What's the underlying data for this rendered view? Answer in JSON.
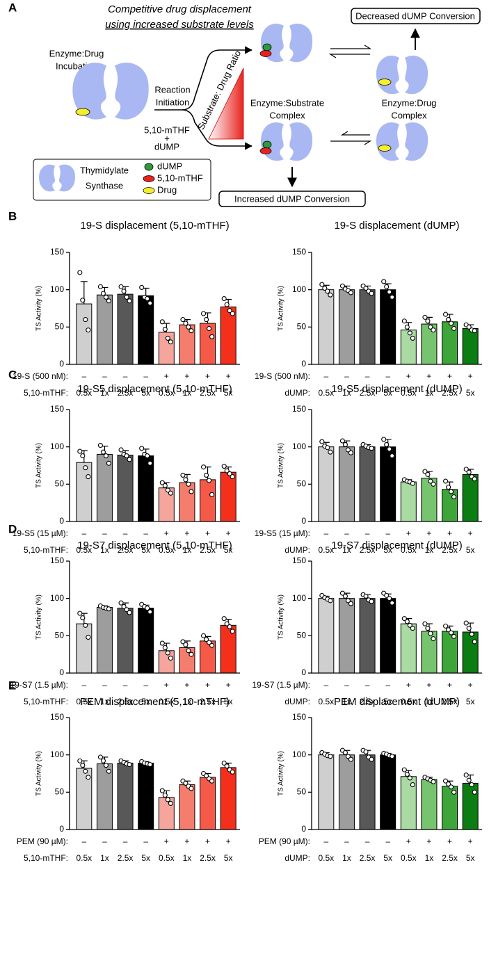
{
  "figure": {
    "panel_labels": [
      "A",
      "B",
      "C",
      "D",
      "E"
    ]
  },
  "diagram": {
    "title_line1": "Competitive drug displacement",
    "title_line2": "using increased substrate levels",
    "decreased": "Decreased dUMP Conversion",
    "increased": "Increased dUMP Conversion",
    "incubation_line1": "Enzyme:Drug",
    "incubation_line2": "Incubation",
    "initiation_line1": "Reaction",
    "initiation_line2": "Initiation",
    "ratio": "Substrate: Drug Ratio",
    "substrate_1": "5,10-mTHF",
    "plus": "+",
    "substrate_2": "dUMP",
    "substrate_complex_line1": "Enzyme:Substrate",
    "substrate_complex_line2": "Complex",
    "drug_complex_line1": "Enzyme:Drug",
    "drug_complex_line2": "Complex",
    "legend": {
      "enzyme_line1": "Thymidylate",
      "enzyme_line2": "Synthase",
      "dump": "dUMP",
      "mthf": "5,10-mTHF",
      "drug": "Drug"
    }
  },
  "chart_data": [
    {
      "type": "bar",
      "title": "19-S displacement (5,10-mTHF)",
      "ylabel": "TS Activity (%)",
      "ylim": [
        0,
        150
      ],
      "yticks": [
        0,
        50,
        100,
        150
      ],
      "treatment_label": "19-S (500 nM):",
      "treatment": [
        "–",
        "–",
        "–",
        "–",
        "+",
        "+",
        "+",
        "+"
      ],
      "substrate_label": "5,10-mTHF:",
      "categories": [
        "0.5x",
        "1x",
        "2.5x",
        "5x",
        "0.5x",
        "1x",
        "2.5x",
        "5x"
      ],
      "values": [
        81,
        93,
        94,
        92,
        43,
        53,
        55,
        77
      ],
      "errors": [
        30,
        10,
        10,
        10,
        12,
        7,
        14,
        10
      ],
      "points": [
        [
          123,
          86,
          60,
          46
        ],
        [
          104,
          95,
          90,
          85
        ],
        [
          104,
          98,
          90,
          85
        ],
        [
          103,
          90,
          88,
          82
        ],
        [
          57,
          47,
          35,
          30
        ],
        [
          60,
          55,
          50,
          45
        ],
        [
          68,
          60,
          48,
          37
        ],
        [
          88,
          80,
          72,
          68
        ]
      ],
      "colors": [
        "#cfcfcf",
        "#9d9d9d",
        "#585858",
        "#000000",
        "#f6a59c",
        "#f57d6d",
        "#f55a48",
        "#f4301c"
      ]
    },
    {
      "type": "bar",
      "title": "19-S displacement (dUMP)",
      "ylabel": "TS Activity (%)",
      "ylim": [
        0,
        150
      ],
      "yticks": [
        0,
        50,
        100,
        150
      ],
      "treatment_label": "19-S (500 nM):",
      "treatment": [
        "–",
        "–",
        "–",
        "–",
        "+",
        "+",
        "+",
        "+"
      ],
      "substrate_label": "dUMP:",
      "categories": [
        "0.5x",
        "1x",
        "2.5x",
        "5x",
        "0.5x",
        "1x",
        "2.5x",
        "5x"
      ],
      "values": [
        100,
        100,
        100,
        100,
        46,
        54,
        57,
        48
      ],
      "errors": [
        6,
        5,
        5,
        8,
        10,
        9,
        10,
        5
      ],
      "points": [
        [
          107,
          102,
          98,
          93
        ],
        [
          105,
          101,
          99,
          96
        ],
        [
          105,
          102,
          98,
          95
        ],
        [
          111,
          104,
          97,
          90
        ],
        [
          58,
          50,
          42,
          35
        ],
        [
          63,
          58,
          50,
          46
        ],
        [
          67,
          60,
          55,
          48
        ],
        [
          53,
          50,
          46,
          45
        ]
      ],
      "colors": [
        "#cfcfcf",
        "#9d9d9d",
        "#585858",
        "#000000",
        "#a9dba2",
        "#76c46e",
        "#3ea53a",
        "#0b7d12"
      ]
    },
    {
      "type": "bar",
      "title": "19-S5 displacement (5,10-mTHF)",
      "ylabel": "TS Activity (%)",
      "ylim": [
        0,
        150
      ],
      "yticks": [
        0,
        50,
        100,
        150
      ],
      "treatment_label": "19-S5 (15 µM):",
      "treatment": [
        "–",
        "–",
        "–",
        "–",
        "+",
        "+",
        "+",
        "+"
      ],
      "substrate_label": "5,10-mTHF:",
      "categories": [
        "0.5x",
        "1x",
        "2.5x",
        "5x",
        "0.5x",
        "1x",
        "2.5x",
        "5x"
      ],
      "values": [
        79,
        90,
        89,
        88,
        45,
        52,
        56,
        66
      ],
      "errors": [
        16,
        11,
        6,
        9,
        7,
        11,
        17,
        7
      ],
      "points": [
        [
          94,
          88,
          72,
          60
        ],
        [
          102,
          93,
          88,
          78
        ],
        [
          96,
          90,
          88,
          83
        ],
        [
          98,
          90,
          88,
          78
        ],
        [
          52,
          48,
          42,
          38
        ],
        [
          62,
          56,
          50,
          40
        ],
        [
          73,
          62,
          55,
          36
        ],
        [
          74,
          68,
          64,
          60
        ]
      ],
      "colors": [
        "#cfcfcf",
        "#9d9d9d",
        "#585858",
        "#000000",
        "#f6a59c",
        "#f57d6d",
        "#f55a48",
        "#f4301c"
      ]
    },
    {
      "type": "bar",
      "title": "19-S5 displacement (dUMP)",
      "ylabel": "TS Activity (%)",
      "ylim": [
        0,
        150
      ],
      "yticks": [
        0,
        50,
        100,
        150
      ],
      "treatment_label": "19-S5 (15 µM):",
      "treatment": [
        "–",
        "–",
        "–",
        "–",
        "+",
        "+",
        "+",
        "+"
      ],
      "substrate_label": "dUMP:",
      "categories": [
        "0.5x",
        "1x",
        "2.5x",
        "5x",
        "0.5x",
        "1x",
        "2.5x",
        "5x"
      ],
      "values": [
        100,
        100,
        100,
        100,
        53,
        58,
        43,
        63
      ],
      "errors": [
        6,
        8,
        3,
        10,
        3,
        9,
        10,
        7
      ],
      "points": [
        [
          107,
          101,
          99,
          93
        ],
        [
          108,
          103,
          96,
          92
        ],
        [
          103,
          101,
          99,
          98
        ],
        [
          110,
          103,
          97,
          88
        ],
        [
          56,
          54,
          53,
          51
        ],
        [
          67,
          63,
          54,
          50
        ],
        [
          54,
          46,
          40,
          33
        ],
        [
          70,
          66,
          60,
          57
        ]
      ],
      "colors": [
        "#cfcfcf",
        "#9d9d9d",
        "#585858",
        "#000000",
        "#a9dba2",
        "#76c46e",
        "#3ea53a",
        "#0b7d12"
      ]
    },
    {
      "type": "bar",
      "title": "19-S7 displacement (5,10-mTHF)",
      "ylabel": "TS Activity (%)",
      "ylim": [
        0,
        150
      ],
      "yticks": [
        0,
        50,
        100,
        150
      ],
      "treatment_label": "19-S7 (1.5 µM):",
      "treatment": [
        "–",
        "–",
        "–",
        "–",
        "+",
        "+",
        "+",
        "+"
      ],
      "substrate_label": "5,10-mTHF:",
      "categories": [
        "0.5x",
        "1x",
        "2.5x",
        "5x",
        "0.5x",
        "1x",
        "2.5x",
        "5x"
      ],
      "values": [
        66,
        88,
        87,
        87,
        30,
        34,
        43,
        64
      ],
      "errors": [
        14,
        2,
        7,
        4,
        10,
        9,
        6,
        8
      ],
      "points": [
        [
          80,
          74,
          64,
          48
        ],
        [
          90,
          88,
          87,
          86
        ],
        [
          94,
          89,
          85,
          81
        ],
        [
          92,
          89,
          87,
          82
        ],
        [
          40,
          34,
          27,
          20
        ],
        [
          42,
          38,
          30,
          25
        ],
        [
          50,
          45,
          41,
          37
        ],
        [
          73,
          66,
          62,
          56
        ]
      ],
      "colors": [
        "#cfcfcf",
        "#9d9d9d",
        "#585858",
        "#000000",
        "#f6a59c",
        "#f57d6d",
        "#f55a48",
        "#f4301c"
      ]
    },
    {
      "type": "bar",
      "title": "19-S7 displacement (dUMP)",
      "ylabel": "TS Activity (%)",
      "ylim": [
        0,
        150
      ],
      "yticks": [
        0,
        50,
        100,
        150
      ],
      "treatment_label": "19-S7 (1.5 µM):",
      "treatment": [
        "–",
        "–",
        "–",
        "–",
        "+",
        "+",
        "+",
        "+"
      ],
      "substrate_label": "dUMP:",
      "categories": [
        "0.5x",
        "1x",
        "2.5x",
        "5x",
        "0.5x",
        "1x",
        "2.5x",
        "5x"
      ],
      "values": [
        100,
        100,
        100,
        100,
        66,
        56,
        56,
        55
      ],
      "errors": [
        3,
        7,
        5,
        6,
        7,
        10,
        7,
        12
      ],
      "points": [
        [
          104,
          101,
          99,
          97
        ],
        [
          107,
          103,
          97,
          93
        ],
        [
          105,
          103,
          98,
          96
        ],
        [
          107,
          104,
          100,
          94
        ],
        [
          73,
          69,
          64,
          60
        ],
        [
          66,
          60,
          53,
          46
        ],
        [
          63,
          58,
          54,
          49
        ],
        [
          67,
          60,
          52,
          42
        ]
      ],
      "colors": [
        "#cfcfcf",
        "#9d9d9d",
        "#585858",
        "#000000",
        "#a9dba2",
        "#76c46e",
        "#3ea53a",
        "#0b7d12"
      ]
    },
    {
      "type": "bar",
      "title": "PEM displacement (5,10-mTHF)",
      "ylabel": "TS Activity (%)",
      "ylim": [
        0,
        150
      ],
      "yticks": [
        0,
        50,
        100,
        150
      ],
      "treatment_label": "PEM (90 µM):",
      "treatment": [
        "–",
        "–",
        "–",
        "–",
        "+",
        "+",
        "+",
        "+"
      ],
      "substrate_label": "5,10-mTHF:",
      "categories": [
        "0.5x",
        "1x",
        "2.5x",
        "5x",
        "0.5x",
        "1x",
        "2.5x",
        "5x"
      ],
      "values": [
        82,
        88,
        89,
        89,
        43,
        60,
        70,
        83
      ],
      "errors": [
        10,
        9,
        3,
        2,
        9,
        5,
        5,
        6
      ],
      "points": [
        [
          92,
          86,
          78,
          70
        ],
        [
          97,
          92,
          86,
          78
        ],
        [
          92,
          90,
          88,
          87
        ],
        [
          91,
          89,
          88,
          87
        ],
        [
          52,
          46,
          40,
          35
        ],
        [
          65,
          62,
          58,
          55
        ],
        [
          75,
          72,
          68,
          65
        ],
        [
          89,
          85,
          80,
          77
        ]
      ],
      "colors": [
        "#cfcfcf",
        "#9d9d9d",
        "#585858",
        "#000000",
        "#f6a59c",
        "#f57d6d",
        "#f55a48",
        "#f4301c"
      ]
    },
    {
      "type": "bar",
      "title": "PEM displacement (dUMP)",
      "ylabel": "TS Activity (%)",
      "ylim": [
        0,
        150
      ],
      "yticks": [
        0,
        50,
        100,
        150
      ],
      "treatment_label": "PEM (90 µM):",
      "treatment": [
        "–",
        "–",
        "–",
        "–",
        "+",
        "+",
        "+",
        "+"
      ],
      "substrate_label": "dUMP:",
      "categories": [
        "0.5x",
        "1x",
        "2.5x",
        "5x",
        "0.5x",
        "1x",
        "2.5x",
        "5x"
      ],
      "values": [
        100,
        100,
        100,
        100,
        71,
        67,
        58,
        62
      ],
      "errors": [
        3,
        6,
        6,
        2,
        8,
        3,
        7,
        11
      ],
      "points": [
        [
          103,
          101,
          99,
          98
        ],
        [
          106,
          103,
          98,
          94
        ],
        [
          106,
          104,
          97,
          94
        ],
        [
          102,
          101,
          99,
          98
        ],
        [
          80,
          74,
          69,
          60
        ],
        [
          70,
          68,
          66,
          64
        ],
        [
          65,
          61,
          57,
          50
        ],
        [
          73,
          66,
          60,
          50
        ]
      ],
      "colors": [
        "#cfcfcf",
        "#9d9d9d",
        "#585858",
        "#000000",
        "#a9dba2",
        "#76c46e",
        "#3ea53a",
        "#0b7d12"
      ]
    }
  ]
}
